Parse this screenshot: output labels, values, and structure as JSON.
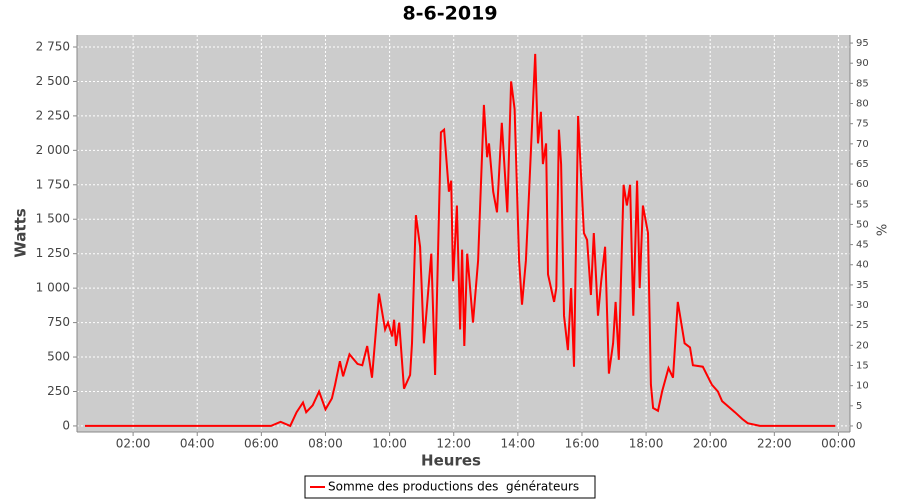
{
  "chart_data": {
    "type": "line",
    "title": "8-6-2019",
    "x_label": "Heures",
    "y_label": "Watts",
    "y2_label": "%",
    "x": [
      0.5,
      1,
      1.5,
      2,
      2.5,
      3,
      3.5,
      4,
      4.5,
      5,
      5.5,
      6,
      6.3,
      6.6,
      6.9,
      7.1,
      7.3,
      7.4,
      7.6,
      7.8,
      8.0,
      8.2,
      8.3,
      8.45,
      8.55,
      8.75,
      9.0,
      9.15,
      9.3,
      9.45,
      9.67,
      9.86,
      9.95,
      10.08,
      10.14,
      10.2,
      10.3,
      10.45,
      10.64,
      10.7,
      10.82,
      10.95,
      11.07,
      11.3,
      11.42,
      11.6,
      11.7,
      11.85,
      11.92,
      11.98,
      12.1,
      12.2,
      12.26,
      12.33,
      12.42,
      12.6,
      12.76,
      12.94,
      13.04,
      13.1,
      13.23,
      13.35,
      13.5,
      13.67,
      13.79,
      13.9,
      14.04,
      14.13,
      14.25,
      14.35,
      14.54,
      14.63,
      14.72,
      14.78,
      14.88,
      14.94,
      15.13,
      15.2,
      15.28,
      15.35,
      15.44,
      15.56,
      15.66,
      15.75,
      15.88,
      16.06,
      16.16,
      16.28,
      16.37,
      16.5,
      16.6,
      16.72,
      16.84,
      16.97,
      17.05,
      17.15,
      17.3,
      17.4,
      17.5,
      17.6,
      17.72,
      17.8,
      17.9,
      18.06,
      18.15,
      18.22,
      18.37,
      18.5,
      18.7,
      18.84,
      18.99,
      19.2,
      19.37,
      19.46,
      19.77,
      20.05,
      20.24,
      20.37,
      20.77,
      21.0,
      21.17,
      21.55,
      22,
      22.5,
      23,
      23.5,
      23.9
    ],
    "series": [
      {
        "name": "Somme des productions des  générateurs",
        "color": "#ff0000",
        "values": [
          0,
          0,
          0,
          0,
          0,
          0,
          0,
          0,
          0,
          0,
          0,
          0,
          0,
          30,
          0,
          100,
          170,
          100,
          150,
          250,
          120,
          200,
          300,
          470,
          360,
          520,
          450,
          440,
          580,
          350,
          960,
          700,
          750,
          650,
          770,
          580,
          750,
          270,
          370,
          600,
          1530,
          1300,
          600,
          1250,
          370,
          2130,
          2150,
          1700,
          1780,
          1050,
          1600,
          700,
          1280,
          580,
          1250,
          750,
          1200,
          2330,
          1950,
          2050,
          1700,
          1550,
          2200,
          1550,
          2500,
          2300,
          1200,
          880,
          1200,
          1700,
          2700,
          2050,
          2280,
          1900,
          2050,
          1100,
          900,
          1000,
          2150,
          1900,
          800,
          550,
          1000,
          430,
          2250,
          1400,
          1350,
          950,
          1400,
          800,
          1050,
          1300,
          380,
          600,
          900,
          480,
          1750,
          1600,
          1750,
          800,
          1780,
          1000,
          1600,
          1400,
          300,
          130,
          110,
          250,
          420,
          350,
          900,
          600,
          570,
          440,
          430,
          300,
          250,
          180,
          100,
          50,
          20,
          0,
          0,
          0,
          0,
          0,
          0
        ]
      }
    ],
    "xlim": [
      0.25,
      24.36
    ],
    "xticks": [
      {
        "value": 2,
        "label": "02:00"
      },
      {
        "value": 4,
        "label": "04:00"
      },
      {
        "value": 6,
        "label": "06:00"
      },
      {
        "value": 8,
        "label": "08:00"
      },
      {
        "value": 10,
        "label": "10:00"
      },
      {
        "value": 12,
        "label": "12:00"
      },
      {
        "value": 14,
        "label": "14:00"
      },
      {
        "value": 16,
        "label": "16:00"
      },
      {
        "value": 18,
        "label": "18:00"
      },
      {
        "value": 20,
        "label": "20:00"
      },
      {
        "value": 22,
        "label": "22:00"
      },
      {
        "value": 24,
        "label": "00:00"
      }
    ],
    "ylim": [
      -44,
      2837
    ],
    "yticks": [
      0,
      250,
      500,
      750,
      {
        "value": 1000,
        "label": "1 000"
      },
      {
        "value": 1250,
        "label": "1 250"
      },
      {
        "value": 1500,
        "label": "1 500"
      },
      {
        "value": 1750,
        "label": "1 750"
      },
      {
        "value": 2000,
        "label": "2 000"
      },
      {
        "value": 2250,
        "label": "2 250"
      },
      {
        "value": 2500,
        "label": "2 500"
      },
      {
        "value": 2750,
        "label": "2 750"
      }
    ],
    "y2lim": [
      -1.5,
      97
    ],
    "y2ticks": [
      0,
      5,
      10,
      15,
      20,
      25,
      30,
      35,
      40,
      45,
      50,
      55,
      60,
      65,
      70,
      75,
      80,
      85,
      90,
      95
    ],
    "grid": true,
    "legend": "bottom"
  }
}
